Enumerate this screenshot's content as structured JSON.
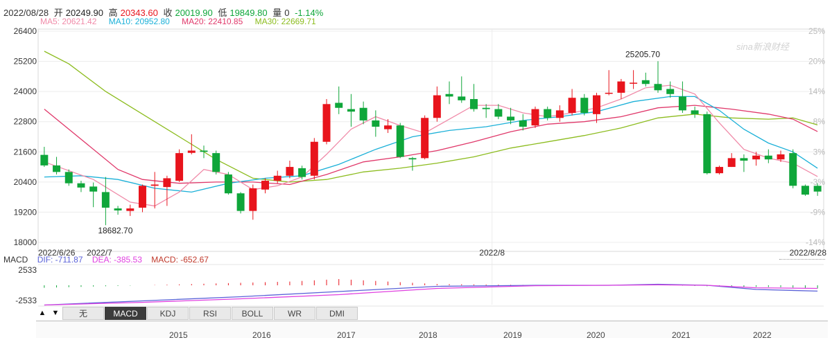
{
  "header": {
    "date": "2022/08/28",
    "open_label": "开",
    "open": "20249.90",
    "high_label": "高",
    "high": "20343.60",
    "close_label": "收",
    "close": "20019.90",
    "low_label": "低",
    "low": "19849.80",
    "vol_label": "量",
    "vol": "0",
    "change": "-1.14%"
  },
  "ma_legend": [
    {
      "label": "MA5: 20621.42",
      "color": "#f08aa8"
    },
    {
      "label": "MA10: 20952.80",
      "color": "#1ab0d8"
    },
    {
      "label": "MA20: 22410.85",
      "color": "#e0386a"
    },
    {
      "label": "MA30: 22669.71",
      "color": "#8cbc1e"
    }
  ],
  "watermark": "sina新浪财经",
  "macd_legend": {
    "title": "MACD",
    "dif": "DIF: -711.87",
    "dea": "DEA: -385.53",
    "macd": "MACD: -652.67"
  },
  "tabs": [
    "无",
    "MACD",
    "KDJ",
    "RSI",
    "BOLL",
    "WR",
    "DMI"
  ],
  "active_tab": "MACD",
  "nav_arrows": [
    "▲",
    "▼"
  ],
  "navigator_years": [
    "2015",
    "2016",
    "2017",
    "2018",
    "2019",
    "2020",
    "2021",
    "2022"
  ],
  "colors": {
    "up": "#e8141c",
    "down": "#0fa63a",
    "grid": "#ececec",
    "dif": "#5a62d8",
    "dea": "#e040e0"
  },
  "chart_data": {
    "type": "candlestick",
    "ylim": [
      18000,
      26400
    ],
    "yticks": [
      "26400",
      "25200",
      "24000",
      "22800",
      "21600",
      "20400",
      "19200",
      "18000"
    ],
    "right_ticks": [
      "25%",
      "20%",
      "14%",
      "8%",
      "3%",
      "-3%",
      "-9%",
      "-14%"
    ],
    "xtick_labels": [
      "2022/6/26",
      "2022/7",
      "2022/8",
      "2022/8/28"
    ],
    "annotations": {
      "high_label": "25205.70",
      "low_label": "18682.70"
    },
    "candles": [
      {
        "o": 21480,
        "c": 21060,
        "h": 21800,
        "l": 21000
      },
      {
        "o": 21060,
        "c": 20800,
        "h": 21400,
        "l": 20700
      },
      {
        "o": 20800,
        "c": 20350,
        "h": 20900,
        "l": 20250
      },
      {
        "o": 20350,
        "c": 20180,
        "h": 20450,
        "l": 20000
      },
      {
        "o": 20220,
        "c": 20020,
        "h": 20380,
        "l": 19400
      },
      {
        "o": 20000,
        "c": 19380,
        "h": 20600,
        "l": 18682.7
      },
      {
        "o": 19350,
        "c": 19270,
        "h": 19450,
        "l": 19100
      },
      {
        "o": 19250,
        "c": 19350,
        "h": 19500,
        "l": 19050
      },
      {
        "o": 19380,
        "c": 20250,
        "h": 20300,
        "l": 19200
      },
      {
        "o": 20250,
        "c": 20300,
        "h": 20800,
        "l": 19350
      },
      {
        "o": 20200,
        "c": 20550,
        "h": 20650,
        "l": 19450
      },
      {
        "o": 20450,
        "c": 21550,
        "h": 21700,
        "l": 20400
      },
      {
        "o": 21560,
        "c": 21650,
        "h": 22300,
        "l": 21500
      },
      {
        "o": 21650,
        "c": 21600,
        "h": 21850,
        "l": 21350
      },
      {
        "o": 21550,
        "c": 20800,
        "h": 21650,
        "l": 20700
      },
      {
        "o": 20700,
        "c": 19950,
        "h": 20800,
        "l": 19900
      },
      {
        "o": 19950,
        "c": 19250,
        "h": 20000,
        "l": 19150
      },
      {
        "o": 19250,
        "c": 20150,
        "h": 20300,
        "l": 18900
      },
      {
        "o": 20100,
        "c": 20450,
        "h": 20550,
        "l": 19950
      },
      {
        "o": 20450,
        "c": 20650,
        "h": 20850,
        "l": 20350
      },
      {
        "o": 20650,
        "c": 21000,
        "h": 21250,
        "l": 20550
      },
      {
        "o": 20950,
        "c": 20600,
        "h": 21050,
        "l": 20500
      },
      {
        "o": 20650,
        "c": 22000,
        "h": 22150,
        "l": 20500
      },
      {
        "o": 22000,
        "c": 23500,
        "h": 23700,
        "l": 21900
      },
      {
        "o": 23550,
        "c": 23350,
        "h": 24200,
        "l": 23100
      },
      {
        "o": 23300,
        "c": 23200,
        "h": 23900,
        "l": 22600
      },
      {
        "o": 23350,
        "c": 22850,
        "h": 23600,
        "l": 22700
      },
      {
        "o": 22850,
        "c": 22600,
        "h": 23250,
        "l": 22200
      },
      {
        "o": 22500,
        "c": 22650,
        "h": 22900,
        "l": 22350
      },
      {
        "o": 22650,
        "c": 21400,
        "h": 22750,
        "l": 21350
      },
      {
        "o": 21350,
        "c": 21300,
        "h": 21400,
        "l": 20850
      },
      {
        "o": 21350,
        "c": 22950,
        "h": 23050,
        "l": 21300
      },
      {
        "o": 22950,
        "c": 23850,
        "h": 24200,
        "l": 22800
      },
      {
        "o": 23900,
        "c": 23800,
        "h": 24400,
        "l": 23500
      },
      {
        "o": 23800,
        "c": 23650,
        "h": 24600,
        "l": 23550
      },
      {
        "o": 23700,
        "c": 23300,
        "h": 24300,
        "l": 23200
      },
      {
        "o": 23350,
        "c": 23300,
        "h": 23500,
        "l": 22950
      },
      {
        "o": 23300,
        "c": 23000,
        "h": 23500,
        "l": 22900
      },
      {
        "o": 23000,
        "c": 22850,
        "h": 23350,
        "l": 22700
      },
      {
        "o": 22850,
        "c": 22600,
        "h": 23100,
        "l": 22450
      },
      {
        "o": 22650,
        "c": 23300,
        "h": 23400,
        "l": 22550
      },
      {
        "o": 23300,
        "c": 22950,
        "h": 23400,
        "l": 22850
      },
      {
        "o": 22950,
        "c": 23250,
        "h": 23450,
        "l": 22800
      },
      {
        "o": 23150,
        "c": 23750,
        "h": 24100,
        "l": 23050
      },
      {
        "o": 23750,
        "c": 23150,
        "h": 23900,
        "l": 23050
      },
      {
        "o": 23100,
        "c": 23850,
        "h": 23950,
        "l": 22750
      },
      {
        "o": 23950,
        "c": 23950,
        "h": 24850,
        "l": 23850
      },
      {
        "o": 23950,
        "c": 24400,
        "h": 24500,
        "l": 23700
      },
      {
        "o": 24350,
        "c": 24350,
        "h": 24850,
        "l": 24100
      },
      {
        "o": 24450,
        "c": 24300,
        "h": 24750,
        "l": 24200
      },
      {
        "o": 24300,
        "c": 24050,
        "h": 25205.7,
        "l": 23950
      },
      {
        "o": 24100,
        "c": 23900,
        "h": 24400,
        "l": 23750
      },
      {
        "o": 23800,
        "c": 23250,
        "h": 24400,
        "l": 23150
      },
      {
        "o": 23250,
        "c": 23100,
        "h": 23400,
        "l": 22950
      },
      {
        "o": 23100,
        "c": 20750,
        "h": 23200,
        "l": 20700
      },
      {
        "o": 20750,
        "c": 21000,
        "h": 21050,
        "l": 20700
      },
      {
        "o": 21000,
        "c": 21350,
        "h": 21550,
        "l": 21000
      },
      {
        "o": 21350,
        "c": 21250,
        "h": 21500,
        "l": 20800
      },
      {
        "o": 21300,
        "c": 21450,
        "h": 21600,
        "l": 21050
      },
      {
        "o": 21450,
        "c": 21300,
        "h": 21700,
        "l": 21150
      },
      {
        "o": 21300,
        "c": 21500,
        "h": 21650,
        "l": 21200
      },
      {
        "o": 21550,
        "c": 20250,
        "h": 21700,
        "l": 20150
      },
      {
        "o": 20250,
        "c": 19900,
        "h": 20300,
        "l": 19850
      },
      {
        "o": 20250,
        "c": 20020,
        "h": 20344,
        "l": 19850
      }
    ],
    "ma5": [
      [
        0,
        21200
      ],
      [
        4,
        20500
      ],
      [
        7,
        19600
      ],
      [
        9,
        19450
      ],
      [
        11,
        20000
      ],
      [
        13,
        20900
      ],
      [
        15,
        20700
      ],
      [
        17,
        20100
      ],
      [
        19,
        20250
      ],
      [
        21,
        20600
      ],
      [
        23,
        21500
      ],
      [
        25,
        22500
      ],
      [
        27,
        23000
      ],
      [
        29,
        22650
      ],
      [
        31,
        22350
      ],
      [
        33,
        22900
      ],
      [
        35,
        23450
      ],
      [
        37,
        23450
      ],
      [
        39,
        23150
      ],
      [
        41,
        23000
      ],
      [
        43,
        23150
      ],
      [
        45,
        23350
      ],
      [
        47,
        23700
      ],
      [
        49,
        24150
      ],
      [
        51,
        24250
      ],
      [
        53,
        23900
      ],
      [
        55,
        22750
      ],
      [
        57,
        21700
      ],
      [
        59,
        21350
      ],
      [
        61,
        21150
      ],
      [
        63,
        20620
      ]
    ],
    "ma10": [
      [
        0,
        20600
      ],
      [
        3,
        20650
      ],
      [
        6,
        20500
      ],
      [
        9,
        20150
      ],
      [
        12,
        20000
      ],
      [
        15,
        20350
      ],
      [
        18,
        20550
      ],
      [
        21,
        20650
      ],
      [
        24,
        21100
      ],
      [
        27,
        21700
      ],
      [
        30,
        22200
      ],
      [
        33,
        22450
      ],
      [
        36,
        22600
      ],
      [
        39,
        22850
      ],
      [
        42,
        23000
      ],
      [
        45,
        23200
      ],
      [
        48,
        23600
      ],
      [
        51,
        23800
      ],
      [
        53,
        23800
      ],
      [
        55,
        23250
      ],
      [
        57,
        22500
      ],
      [
        59,
        21950
      ],
      [
        61,
        21600
      ],
      [
        63,
        20950
      ]
    ],
    "ma20": [
      [
        0,
        23300
      ],
      [
        3,
        22100
      ],
      [
        6,
        20900
      ],
      [
        8,
        20500
      ],
      [
        11,
        20350
      ],
      [
        14,
        20400
      ],
      [
        17,
        20400
      ],
      [
        20,
        20300
      ],
      [
        23,
        20700
      ],
      [
        26,
        21200
      ],
      [
        29,
        21400
      ],
      [
        32,
        21650
      ],
      [
        35,
        22000
      ],
      [
        38,
        22400
      ],
      [
        41,
        22700
      ],
      [
        44,
        22800
      ],
      [
        47,
        23000
      ],
      [
        50,
        23350
      ],
      [
        53,
        23450
      ],
      [
        56,
        23300
      ],
      [
        59,
        23100
      ],
      [
        61,
        22900
      ],
      [
        63,
        22410
      ]
    ],
    "ma30": [
      [
        0,
        25600
      ],
      [
        2,
        25100
      ],
      [
        5,
        24000
      ],
      [
        8,
        23100
      ],
      [
        11,
        22200
      ],
      [
        14,
        21300
      ],
      [
        17,
        20550
      ],
      [
        20,
        20400
      ],
      [
        23,
        20500
      ],
      [
        26,
        20800
      ],
      [
        29,
        20950
      ],
      [
        32,
        21150
      ],
      [
        35,
        21400
      ],
      [
        38,
        21750
      ],
      [
        41,
        22000
      ],
      [
        44,
        22250
      ],
      [
        47,
        22550
      ],
      [
        50,
        22950
      ],
      [
        53,
        23100
      ],
      [
        56,
        22950
      ],
      [
        59,
        22900
      ],
      [
        61,
        22950
      ],
      [
        63,
        22670
      ]
    ],
    "macd_hist_sample": [
      [
        0,
        -0.2
      ],
      [
        20,
        0.3
      ],
      [
        24,
        0.5
      ],
      [
        28,
        0.3
      ],
      [
        32,
        0.1
      ],
      [
        40,
        0.02
      ],
      [
        50,
        0.02
      ],
      [
        55,
        -0.1
      ],
      [
        60,
        -0.15
      ],
      [
        63,
        -0.25
      ]
    ],
    "macd_dif": [
      [
        0,
        -0.95
      ],
      [
        8,
        -0.75
      ],
      [
        16,
        -0.55
      ],
      [
        24,
        -0.3
      ],
      [
        32,
        -0.05
      ],
      [
        40,
        0.0
      ],
      [
        46,
        0.0
      ],
      [
        50,
        0.05
      ],
      [
        54,
        0.0
      ],
      [
        58,
        -0.2
      ],
      [
        63,
        -0.28
      ]
    ],
    "macd_dea": [
      [
        0,
        -0.95
      ],
      [
        8,
        -0.82
      ],
      [
        16,
        -0.65
      ],
      [
        24,
        -0.45
      ],
      [
        32,
        -0.15
      ],
      [
        40,
        -0.02
      ],
      [
        46,
        0.0
      ],
      [
        50,
        0.02
      ],
      [
        54,
        0.0
      ],
      [
        58,
        -0.12
      ],
      [
        63,
        -0.15
      ]
    ],
    "macd_ticks": [
      "2533",
      "-2533"
    ]
  }
}
